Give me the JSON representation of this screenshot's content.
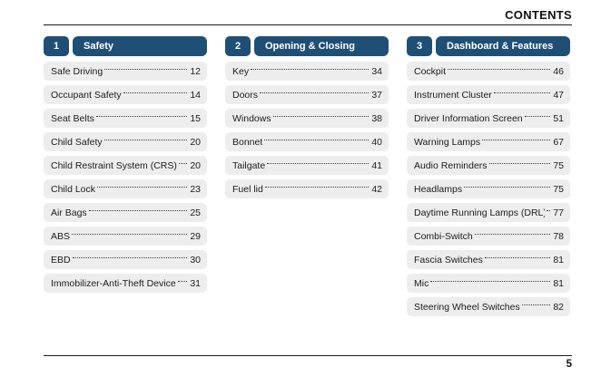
{
  "document": {
    "header": "CONTENTS",
    "page_number": "5"
  },
  "colors": {
    "accent_blue": "#204F76",
    "item_background": "#EDEDED",
    "rule_color": "#1A1A1A"
  },
  "sections": [
    {
      "number": "1",
      "title": "Safety",
      "items": [
        {
          "label": "Safe Driving",
          "page": "12"
        },
        {
          "label": "Occupant Safety",
          "page": "14"
        },
        {
          "label": "Seat Belts",
          "page": "15"
        },
        {
          "label": "Child Safety",
          "page": "20"
        },
        {
          "label": "Child Restraint System (CRS)",
          "page": "20"
        },
        {
          "label": "Child Lock",
          "page": "23"
        },
        {
          "label": "Air Bags",
          "page": "25"
        },
        {
          "label": "ABS",
          "page": "29"
        },
        {
          "label": "EBD",
          "page": "30"
        },
        {
          "label": "Immobilizer-Anti-Theft Device",
          "page": "31"
        }
      ]
    },
    {
      "number": "2",
      "title": "Opening & Closing",
      "items": [
        {
          "label": "Key",
          "page": "34"
        },
        {
          "label": "Doors",
          "page": "37"
        },
        {
          "label": "Windows",
          "page": "38"
        },
        {
          "label": "Bonnet",
          "page": "40"
        },
        {
          "label": "Tailgate",
          "page": "41"
        },
        {
          "label": "Fuel lid",
          "page": "42"
        }
      ]
    },
    {
      "number": "3",
      "title": "Dashboard & Features",
      "items": [
        {
          "label": "Cockpit",
          "page": "46"
        },
        {
          "label": "Instrument Cluster",
          "page": "47"
        },
        {
          "label": "Driver Information Screen",
          "page": "51"
        },
        {
          "label": "Warning Lamps",
          "page": "67"
        },
        {
          "label": "Audio Reminders",
          "page": "75"
        },
        {
          "label": "Headlamps",
          "page": "75"
        },
        {
          "label": "Daytime Running Lamps (DRL)",
          "page": "77"
        },
        {
          "label": "Combi-Switch",
          "page": "78"
        },
        {
          "label": "Fascia Switches",
          "page": "81"
        },
        {
          "label": "Mic",
          "page": "81"
        },
        {
          "label": "Steering Wheel Switches",
          "page": "82"
        }
      ]
    }
  ]
}
